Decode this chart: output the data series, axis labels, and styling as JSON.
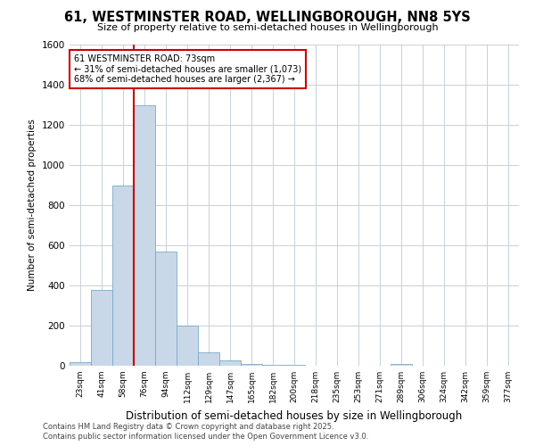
{
  "title": "61, WESTMINSTER ROAD, WELLINGBOROUGH, NN8 5YS",
  "subtitle": "Size of property relative to semi-detached houses in Wellingborough",
  "xlabel": "Distribution of semi-detached houses by size in Wellingborough",
  "ylabel": "Number of semi-detached properties",
  "bin_labels": [
    "23sqm",
    "41sqm",
    "58sqm",
    "76sqm",
    "94sqm",
    "112sqm",
    "129sqm",
    "147sqm",
    "165sqm",
    "182sqm",
    "200sqm",
    "218sqm",
    "235sqm",
    "253sqm",
    "271sqm",
    "289sqm",
    "306sqm",
    "324sqm",
    "342sqm",
    "359sqm",
    "377sqm"
  ],
  "bar_heights": [
    20,
    380,
    900,
    1300,
    570,
    200,
    65,
    25,
    10,
    5,
    3,
    2,
    0,
    0,
    0,
    10,
    0,
    0,
    0,
    0,
    0
  ],
  "bar_color": "#c8d8e8",
  "bar_edge_color": "#7aaac8",
  "property_line_x": 2.5,
  "property_line_color": "#cc0000",
  "annotation_title": "61 WESTMINSTER ROAD: 73sqm",
  "annotation_line1": "← 31% of semi-detached houses are smaller (1,073)",
  "annotation_line2": "68% of semi-detached houses are larger (2,367) →",
  "annotation_box_color": "#cc0000",
  "ylim": [
    0,
    1600
  ],
  "yticks": [
    0,
    200,
    400,
    600,
    800,
    1000,
    1200,
    1400,
    1600
  ],
  "footer_line1": "Contains HM Land Registry data © Crown copyright and database right 2025.",
  "footer_line2": "Contains public sector information licensed under the Open Government Licence v3.0.",
  "background_color": "#ffffff",
  "grid_color": "#c8d0d8"
}
